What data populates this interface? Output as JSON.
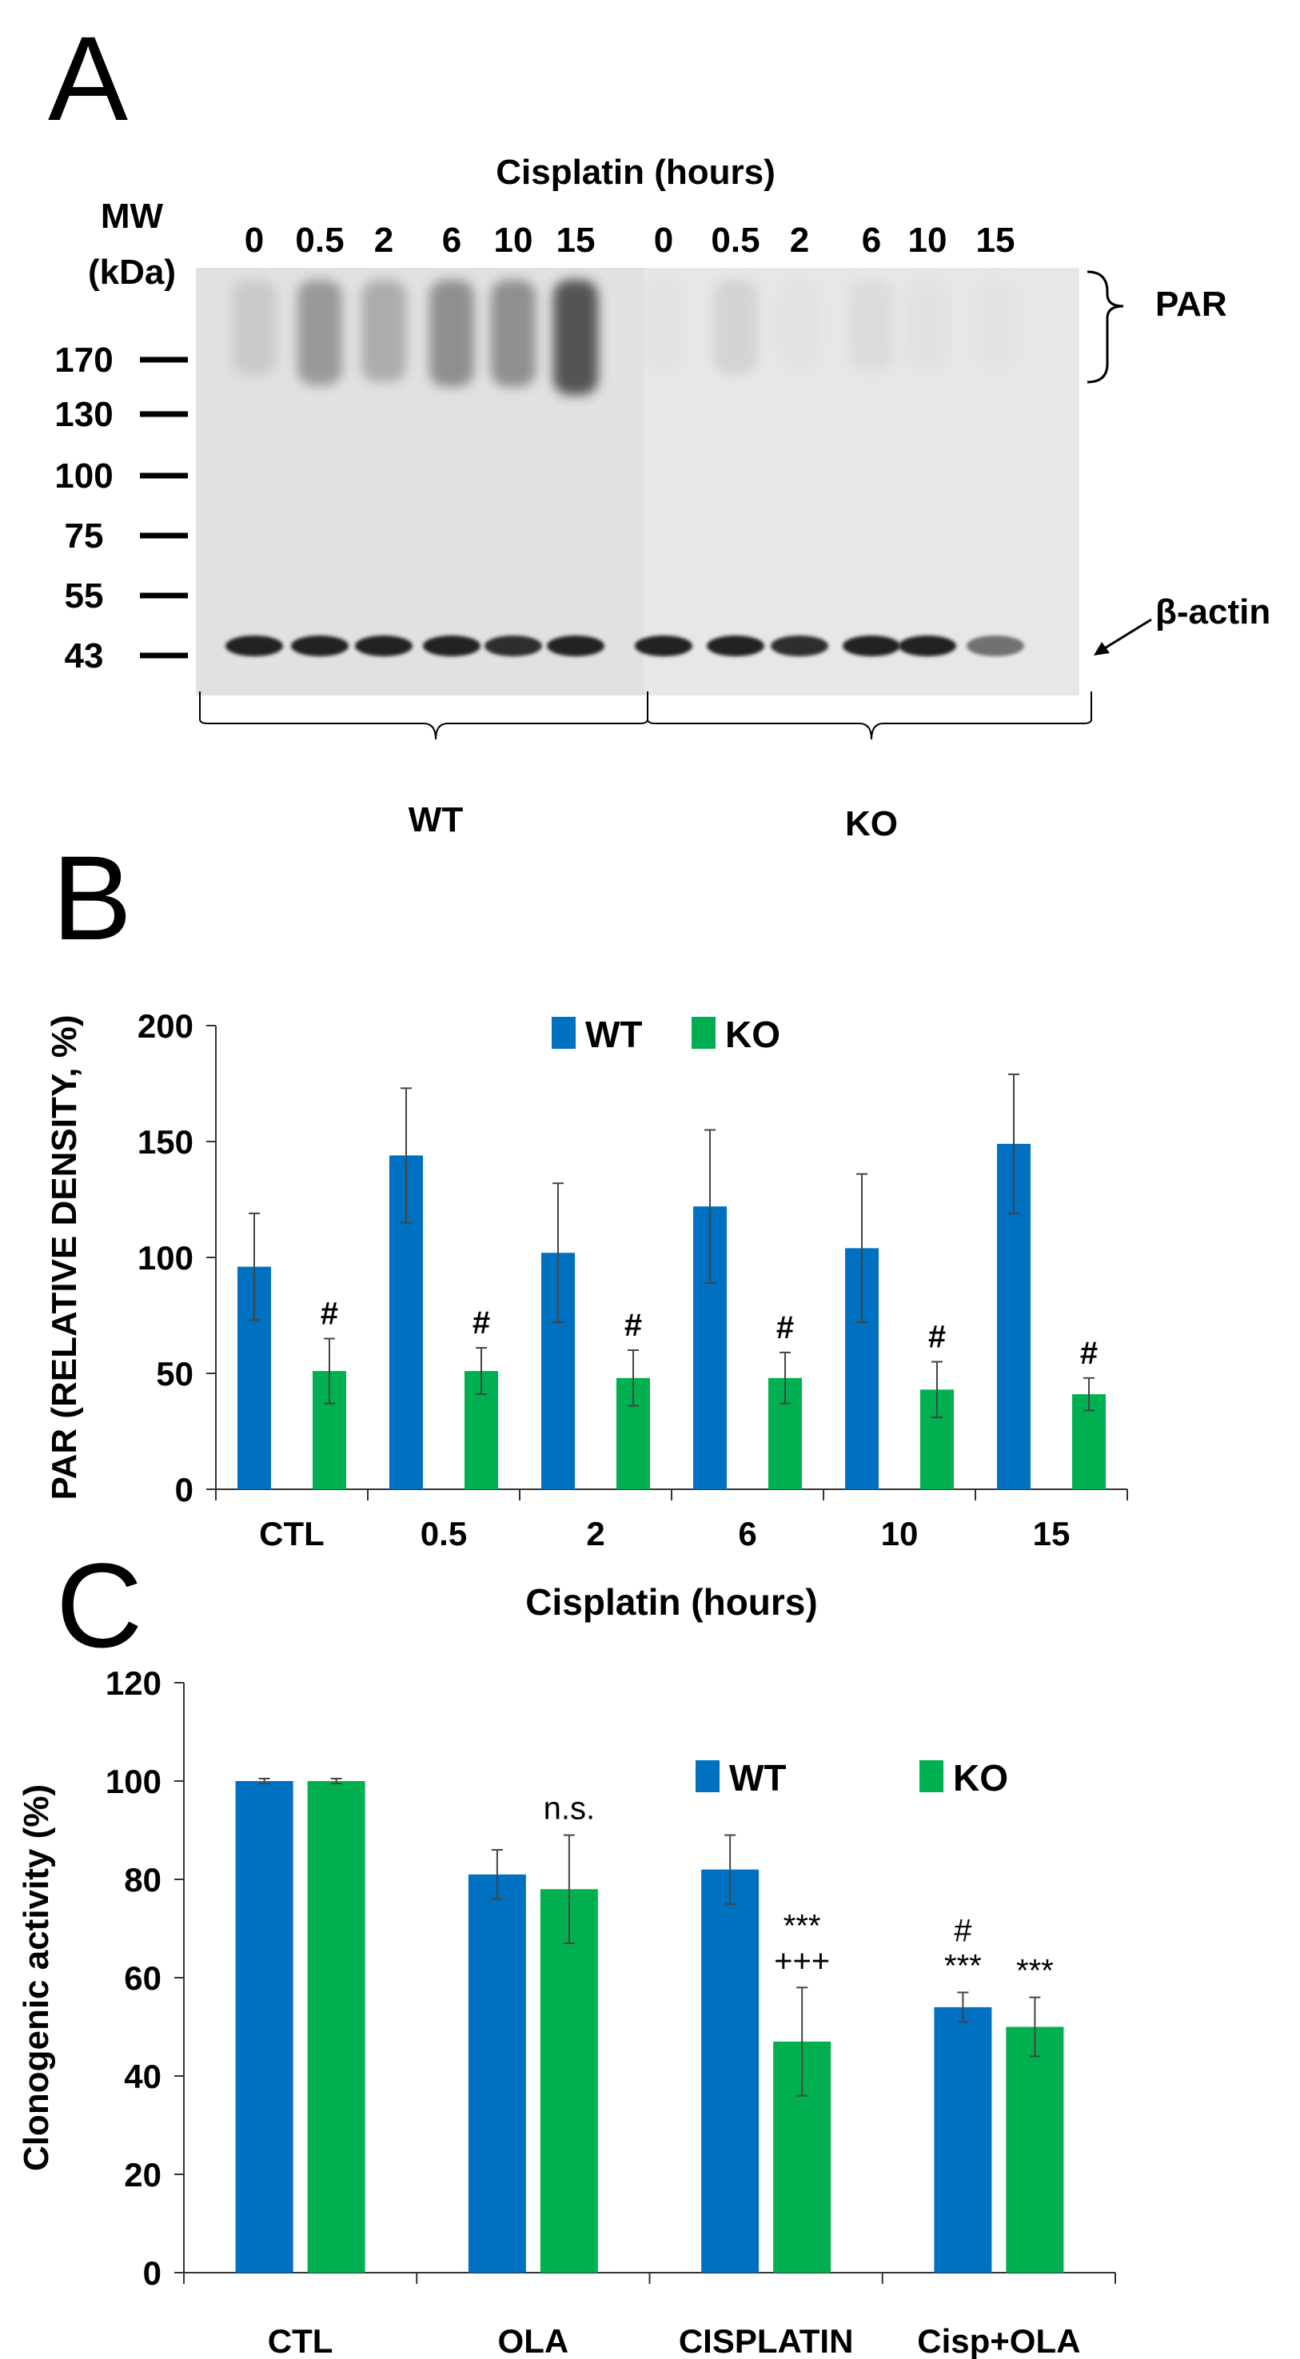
{
  "panel_a": {
    "letter": "A",
    "title": "Cisplatin (hours)",
    "mw_label_line1": "MW",
    "mw_label_line2": "(kDa)",
    "lanes": [
      "0",
      "0.5",
      "2",
      "6",
      "10",
      "15",
      "0",
      "0.5",
      "2",
      "6",
      "10",
      "15"
    ],
    "mw_markers": [
      "170",
      "130",
      "100",
      "75",
      "55",
      "43"
    ],
    "par_label": "PAR",
    "actin_label": "β-actin",
    "group_labels": [
      "WT",
      "KO"
    ],
    "par_intensity": [
      0.25,
      0.55,
      0.45,
      0.6,
      0.6,
      0.85,
      0.05,
      0.2,
      0.05,
      0.12,
      0.06,
      0.04
    ],
    "actin_intensity": [
      0.9,
      0.9,
      0.9,
      0.9,
      0.85,
      0.9,
      0.9,
      0.9,
      0.85,
      0.9,
      0.9,
      0.55
    ]
  },
  "chart_data": [
    {
      "panel": "B",
      "type": "bar",
      "title": "",
      "xlabel": "Cisplatin (hours)",
      "ylabel": "PAR (RELATIVE DENSITY, %)",
      "categories": [
        "CTL",
        "0.5",
        "2",
        "6",
        "10",
        "15"
      ],
      "series": [
        {
          "name": "WT",
          "color": "#0070c0",
          "values": [
            96,
            144,
            102,
            122,
            104,
            149
          ],
          "errors": [
            23,
            29,
            30,
            33,
            32,
            30
          ]
        },
        {
          "name": "KO",
          "color": "#00b050",
          "values": [
            51,
            51,
            48,
            48,
            43,
            41
          ],
          "errors": [
            14,
            10,
            12,
            11,
            12,
            7
          ]
        }
      ],
      "annotations": [
        "#",
        "#",
        "#",
        "#",
        "#",
        "#"
      ],
      "ylim": [
        0,
        200
      ],
      "yticks": [
        0,
        50,
        100,
        150,
        200
      ],
      "legend": "top"
    },
    {
      "panel": "C",
      "type": "bar",
      "title": "",
      "xlabel": "",
      "ylabel": "Clonogenic activity (%)",
      "categories": [
        "CTL",
        "OLA",
        "CISPLATIN",
        "Cisp+OLA"
      ],
      "series": [
        {
          "name": "WT",
          "color": "#0070c0",
          "values": [
            100,
            81,
            82,
            54
          ],
          "errors": [
            0.5,
            5,
            7,
            3
          ]
        },
        {
          "name": "KO",
          "color": "#00b050",
          "values": [
            100,
            78,
            47,
            50
          ],
          "errors": [
            0.5,
            11,
            11,
            6
          ]
        }
      ],
      "annotations": [
        {
          "category": "OLA",
          "series": "KO",
          "lines": [
            "n.s."
          ]
        },
        {
          "category": "CISPLATIN",
          "series": "KO",
          "lines": [
            "***",
            "+++"
          ]
        },
        {
          "category": "Cisp+OLA",
          "series": "WT",
          "lines": [
            "#",
            "***"
          ]
        },
        {
          "category": "Cisp+OLA",
          "series": "KO",
          "lines": [
            "***"
          ]
        }
      ],
      "ylim": [
        0,
        120
      ],
      "yticks": [
        0,
        20,
        40,
        60,
        80,
        100,
        120
      ],
      "legend": "top"
    }
  ],
  "panel_letters": {
    "b": "B",
    "c": "C"
  }
}
